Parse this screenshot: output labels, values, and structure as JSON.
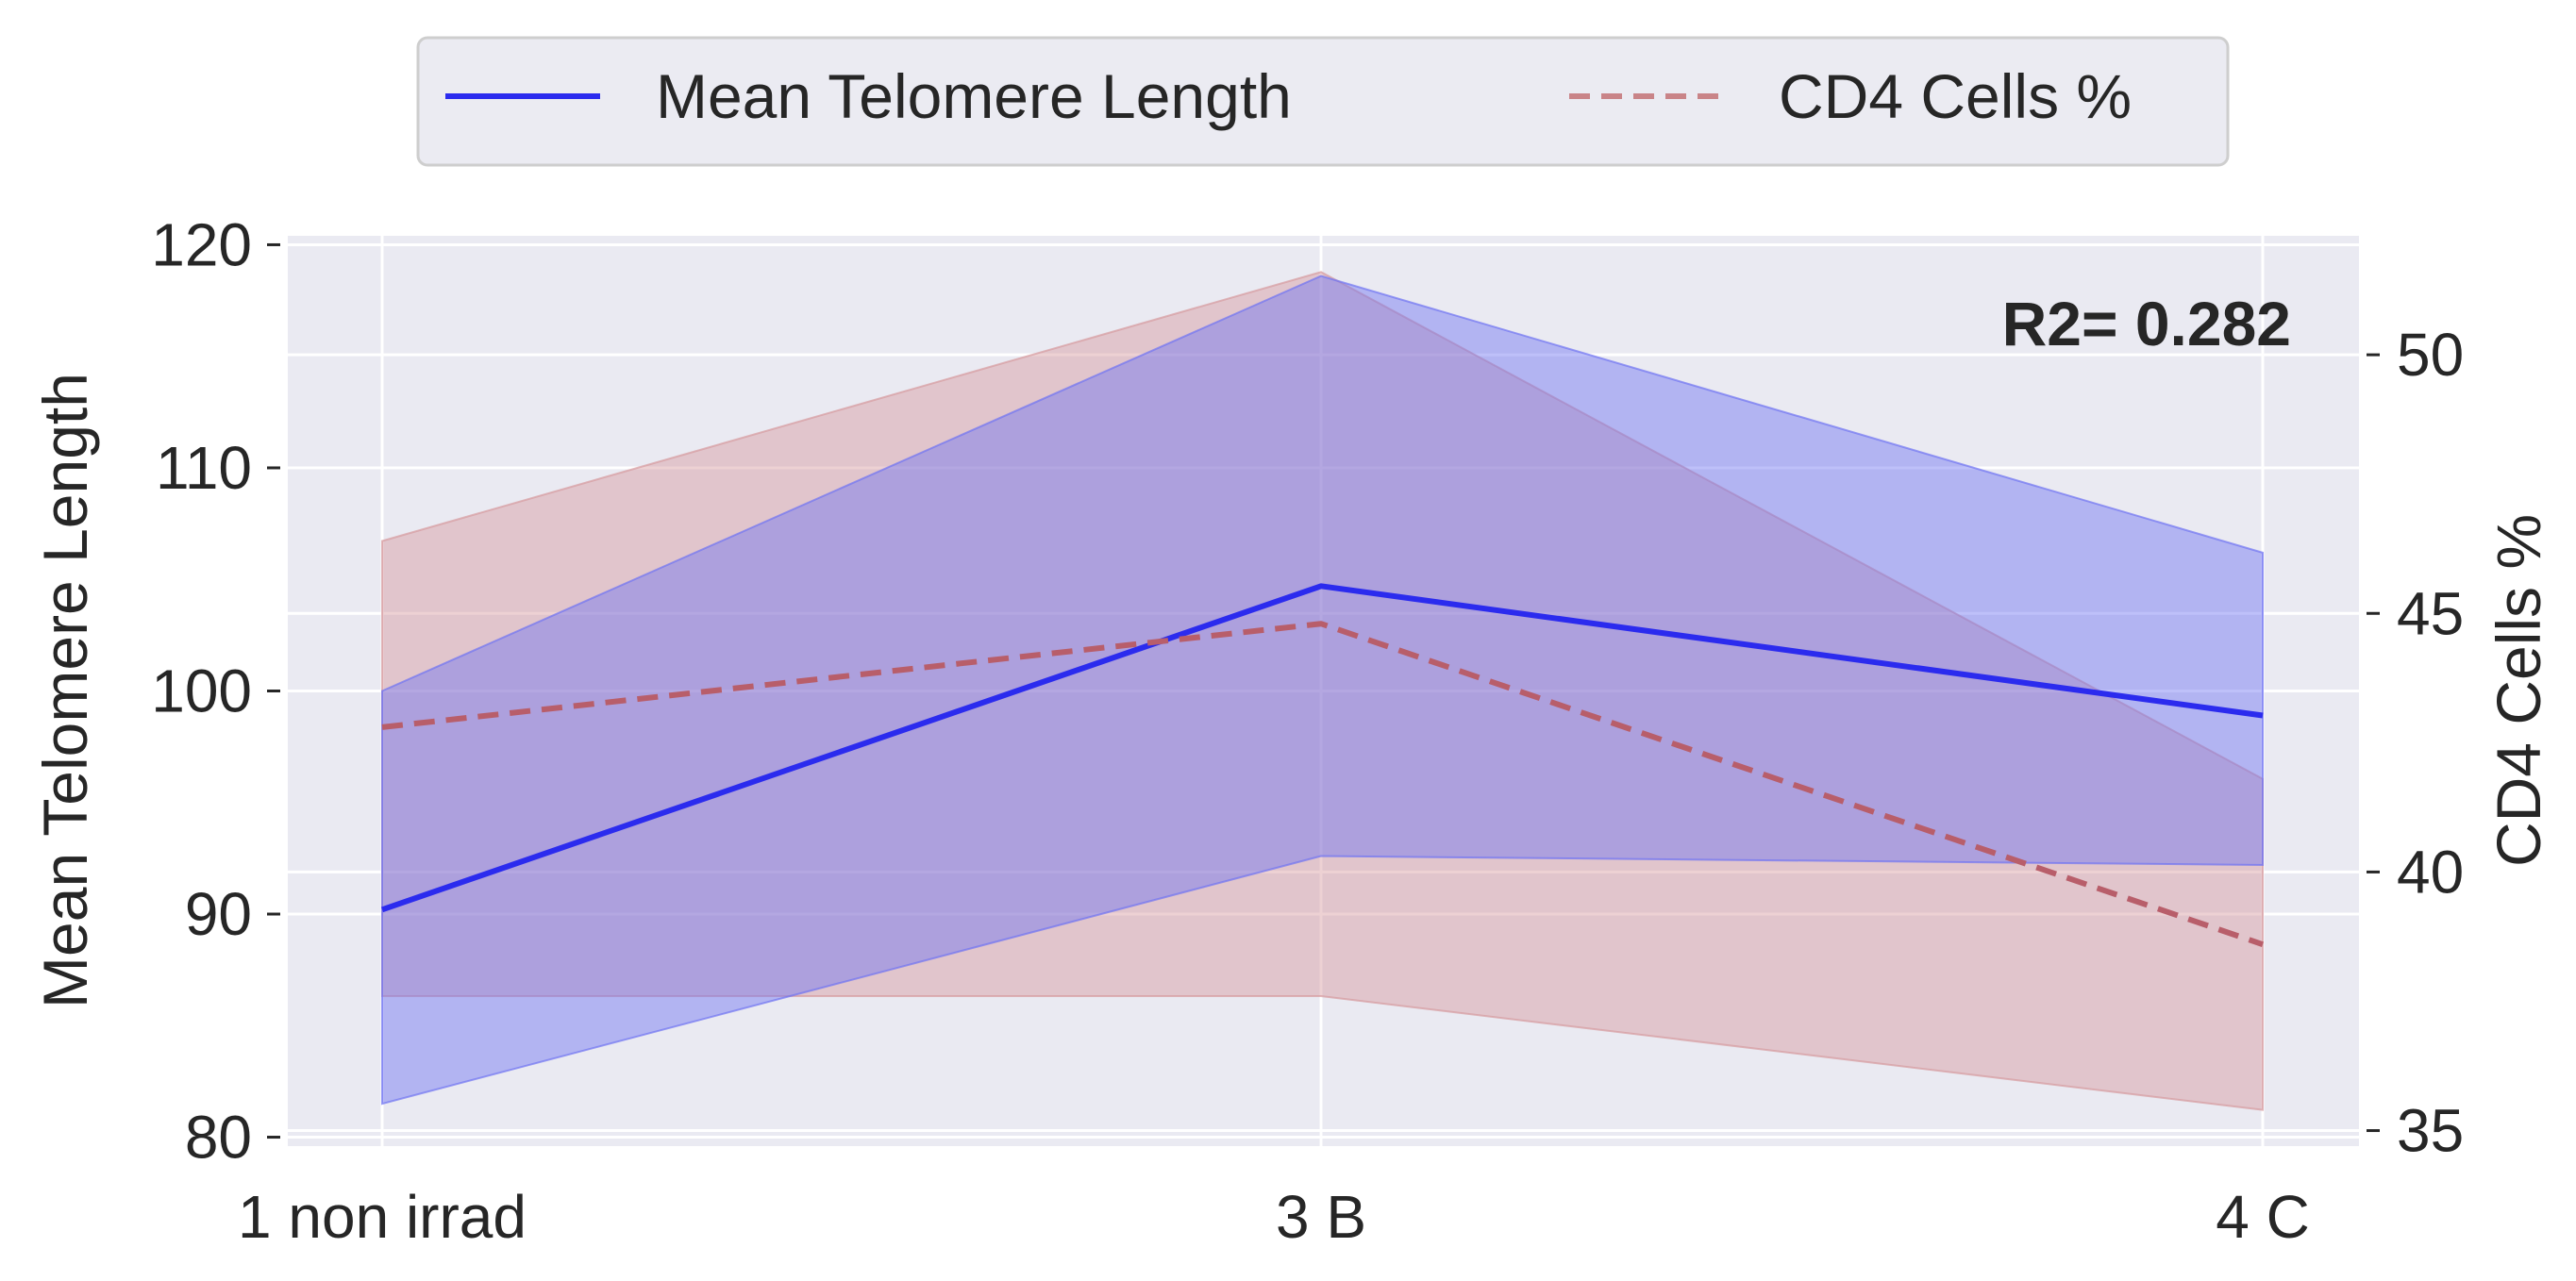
{
  "chart_data": {
    "type": "line",
    "categories": [
      "1 non irrad",
      "3 B",
      "4 C"
    ],
    "series": [
      {
        "name": "Mean Telomere Length",
        "axis": "left",
        "style": "solid",
        "color": "#2b2bee",
        "values": [
          90.2,
          104.7,
          98.9
        ],
        "band_low": [
          81.5,
          92.6,
          92.2
        ],
        "band_high": [
          100.0,
          118.6,
          106.2
        ],
        "band_color": "#6f73f2"
      },
      {
        "name": "CD4 Cells %",
        "axis": "right",
        "style": "dashed",
        "color": "#b85e6a",
        "values": [
          42.8,
          44.8,
          38.6
        ],
        "band_low": [
          37.6,
          37.6,
          35.4
        ],
        "band_high": [
          46.4,
          51.6,
          41.8
        ],
        "band_color": "#d69a9e"
      }
    ],
    "ylabel": "Mean Telomere Length",
    "ylabel_right": "CD4 Cells %",
    "ylim": [
      79.6,
      120.4
    ],
    "ylim_right": [
      34.7,
      52.3
    ],
    "yticks": [
      80,
      90,
      100,
      110,
      120
    ],
    "yticks_right": [
      35,
      40,
      45,
      50
    ],
    "annotation": "R2= 0.282",
    "grid": true,
    "legend_placement": "top-center"
  }
}
